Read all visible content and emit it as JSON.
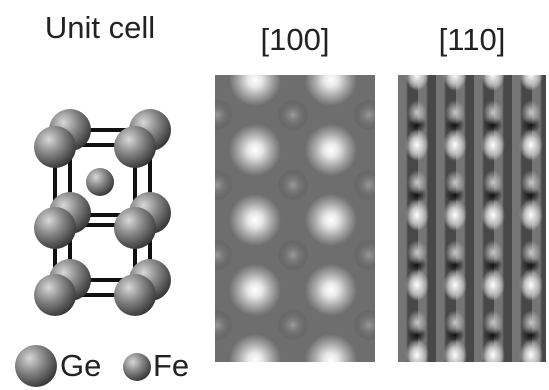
{
  "panels": [
    {
      "label": "Unit cell"
    },
    {
      "label": "[100]"
    },
    {
      "label": "[110]"
    }
  ],
  "legend": [
    {
      "label": "Ge"
    },
    {
      "label": "Fe"
    }
  ]
}
